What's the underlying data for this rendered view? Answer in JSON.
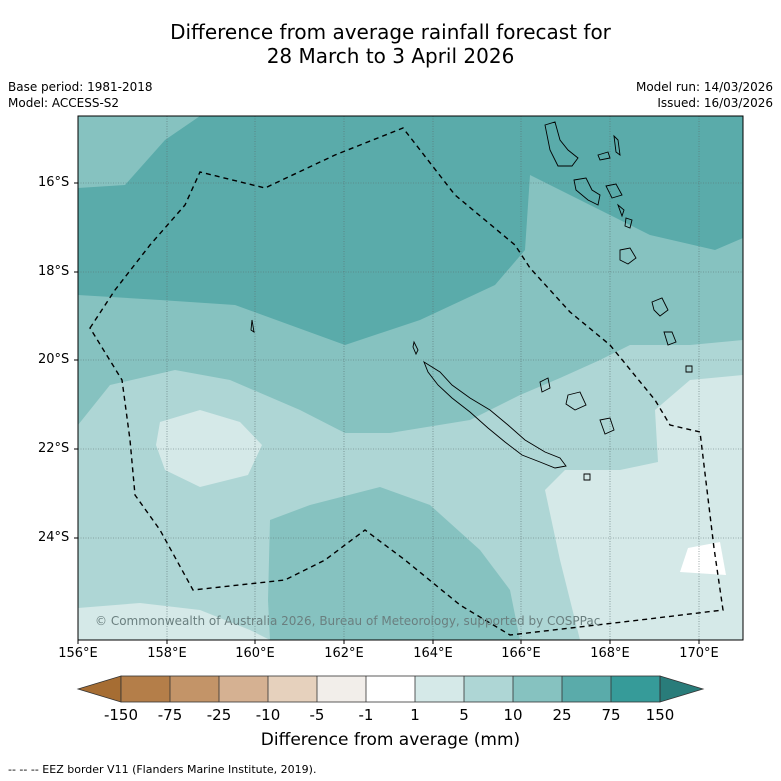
{
  "title_line1": "Difference from average rainfall forecast for",
  "title_line2": "28 March to 3 April 2026",
  "base_period": "Base period: 1981-2018",
  "model": "Model: ACCESS-S2",
  "model_run": "Model run: 14/03/2026",
  "issued": "Issued: 16/03/2026",
  "lat_labels": [
    "16°S",
    "18°S",
    "20°S",
    "22°S",
    "24°S"
  ],
  "lon_labels": [
    "156°E",
    "158°E",
    "160°E",
    "162°E",
    "164°E",
    "166°E",
    "168°E",
    "170°E"
  ],
  "copyright": "© Commonwealth of Australia 2026, Bureau of Meteorology, supported by COSPPac",
  "colorbar": {
    "labels": [
      "-150",
      "-75",
      "-25",
      "-10",
      "-5",
      "-1",
      "1",
      "5",
      "10",
      "25",
      "75",
      "150"
    ],
    "title": "Difference from average (mm)",
    "colors": [
      "#a66d33",
      "#b47e49",
      "#c39468",
      "#d5b192",
      "#e6d1bd",
      "#f2eeea",
      "#ffffff",
      "#d5e9e8",
      "#aed6d5",
      "#86c2c0",
      "#5aabaa",
      "#369b99",
      "#297c7a"
    ]
  },
  "footnote": "-- -- -- EEZ border V11 (Flanders Marine Institute, 2019)."
}
